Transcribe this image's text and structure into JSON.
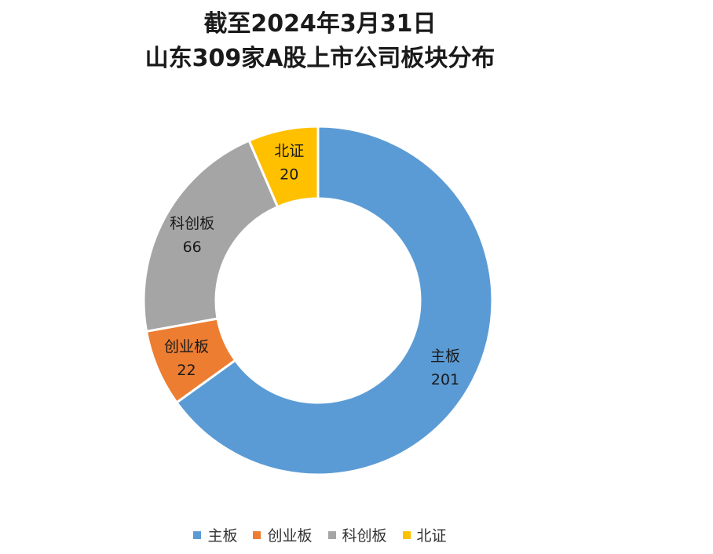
{
  "title": {
    "line1": "截至2024年3月31日",
    "line2": "山东309家A股上市公司板块分布"
  },
  "chart_data": {
    "type": "pie",
    "variant": "donut",
    "title": "截至2024年3月31日 山东309家A股上市公司板块分布",
    "categories": [
      "主板",
      "创业板",
      "科创板",
      "北证"
    ],
    "values": [
      201,
      22,
      66,
      20
    ],
    "colors": [
      "#5B9BD5",
      "#ED7D31",
      "#A5A5A5",
      "#FFC000"
    ],
    "legend_position": "bottom",
    "data_labels": true
  }
}
